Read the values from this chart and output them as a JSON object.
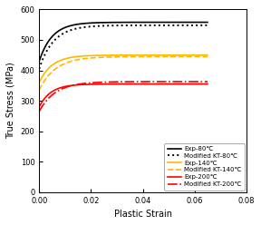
{
  "title": "",
  "xlabel": "Plastic Strain",
  "ylabel": "True Stress (MPa)",
  "xlim": [
    0,
    0.08
  ],
  "ylim": [
    0,
    600
  ],
  "xticks": [
    0,
    0.02,
    0.04,
    0.06,
    0.08
  ],
  "yticks": [
    0,
    100,
    200,
    300,
    400,
    500,
    600
  ],
  "curves": {
    "exp_80": {
      "label": "Exp-80℃",
      "color": "#000000",
      "linestyle": "-",
      "linewidth": 1.2,
      "sigma0": 430,
      "sigma_sat": 558,
      "k": 200
    },
    "kt_80": {
      "label": "Modified KT-80℃",
      "color": "#000000",
      "linestyle": ":",
      "linewidth": 1.4,
      "sigma0": 405,
      "sigma_sat": 548,
      "k": 180
    },
    "exp_140": {
      "label": "Exp-140℃",
      "color": "#FFB800",
      "linestyle": "-",
      "linewidth": 1.2,
      "sigma0": 360,
      "sigma_sat": 450,
      "k": 200
    },
    "kt_140": {
      "label": "Modified KT-140℃",
      "color": "#FFB800",
      "linestyle": "--",
      "linewidth": 1.2,
      "sigma0": 335,
      "sigma_sat": 445,
      "k": 160
    },
    "exp_200": {
      "label": "Exp-200℃",
      "color": "#FF0000",
      "linestyle": "-",
      "linewidth": 1.2,
      "sigma0": 280,
      "sigma_sat": 355,
      "k": 220
    },
    "kt_200": {
      "label": "Modified KT-200℃",
      "color": "#FF0000",
      "linestyle": "-.",
      "linewidth": 1.2,
      "sigma0": 265,
      "sigma_sat": 363,
      "k": 160
    }
  },
  "legend_fontsize": 5.0,
  "axis_fontsize": 7,
  "tick_fontsize": 6,
  "figsize": [
    2.88,
    2.48
  ],
  "dpi": 100
}
